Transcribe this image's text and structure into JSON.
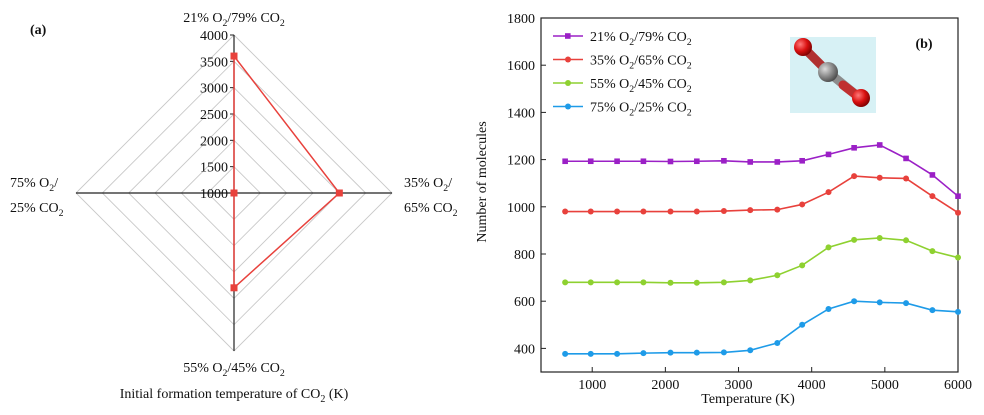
{
  "chart_data": [
    {
      "type": "radar",
      "panel_label": "(a)",
      "axes": [
        {
          "name": "21% O2/79% CO2",
          "label": [
            "21% O",
            "2",
            "/79% CO",
            "2"
          ]
        },
        {
          "name": "35% O2/65% CO2",
          "label_lines": [
            [
              "35% O",
              "2",
              "/"
            ],
            [
              "65% CO",
              "2"
            ]
          ]
        },
        {
          "name": "55% O2/45% CO2",
          "label": [
            "55% O",
            "2",
            "/45% CO",
            "2"
          ]
        },
        {
          "name": "75% O2/25% CO2",
          "label_lines": [
            [
              "75% O",
              "2",
              "/"
            ],
            [
              "25% CO",
              "2"
            ]
          ]
        }
      ],
      "values": [
        3600,
        3000,
        2800,
        1000
      ],
      "radial_min": 1000,
      "radial_max": 4000,
      "radial_ticks": [
        1000,
        1500,
        2000,
        2500,
        3000,
        3500,
        4000
      ],
      "radial_tick_labels": [
        "1000",
        "1500",
        "2000",
        "2500",
        "3000",
        "3500",
        "4000"
      ],
      "series_color": "#e8413c",
      "xlabel_parts": [
        "Initial formation temperature of CO",
        "2",
        " (K)"
      ]
    },
    {
      "type": "line",
      "panel_label": "(b)",
      "xlabel": "Temperature  (K)",
      "ylabel": "Number of molecules",
      "xlim": [
        300,
        6000
      ],
      "ylim": [
        300,
        1800
      ],
      "x_ticks": [
        1000,
        2000,
        3000,
        4000,
        5000,
        6000
      ],
      "y_ticks": [
        400,
        600,
        800,
        1000,
        1200,
        1400,
        1600,
        1800
      ],
      "legend_position": "top-left",
      "x": [
        630,
        980,
        1340,
        1700,
        2070,
        2430,
        2800,
        3160,
        3530,
        3870,
        4230,
        4580,
        4930,
        5290,
        5650,
        6000
      ],
      "series": [
        {
          "name": "21% O2/79% CO2",
          "legend_parts": [
            "21% O",
            "2",
            "/79% CO",
            "2"
          ],
          "color": "#9b20c6",
          "marker": "square",
          "values": [
            1193,
            1193,
            1193,
            1193,
            1192,
            1193,
            1195,
            1190,
            1190,
            1195,
            1222,
            1250,
            1262,
            1205,
            1135,
            1045
          ]
        },
        {
          "name": "35% O2/65% CO2",
          "legend_parts": [
            "35% O",
            "2",
            "/65% CO",
            "2"
          ],
          "color": "#e8413c",
          "marker": "circle",
          "values": [
            980,
            980,
            980,
            980,
            980,
            980,
            982,
            986,
            988,
            1010,
            1062,
            1130,
            1123,
            1120,
            1045,
            975
          ]
        },
        {
          "name": "55% O2/45% CO2",
          "legend_parts": [
            "55% O",
            "2",
            "/45% CO",
            "2"
          ],
          "color": "#8ed130",
          "marker": "circle",
          "values": [
            680,
            680,
            680,
            680,
            678,
            678,
            680,
            688,
            710,
            752,
            828,
            860,
            868,
            858,
            812,
            785
          ]
        },
        {
          "name": "75% O2/25% CO2",
          "legend_parts": [
            "75% O",
            "2",
            "/25% CO",
            "2"
          ],
          "color": "#1e9be8",
          "marker": "circle",
          "values": [
            377,
            377,
            377,
            380,
            382,
            382,
            383,
            392,
            423,
            500,
            567,
            600,
            595,
            592,
            562,
            555
          ]
        }
      ],
      "inset": {
        "description_icon": "co2-molecule-icon",
        "background": "#d7f1f5"
      }
    }
  ]
}
